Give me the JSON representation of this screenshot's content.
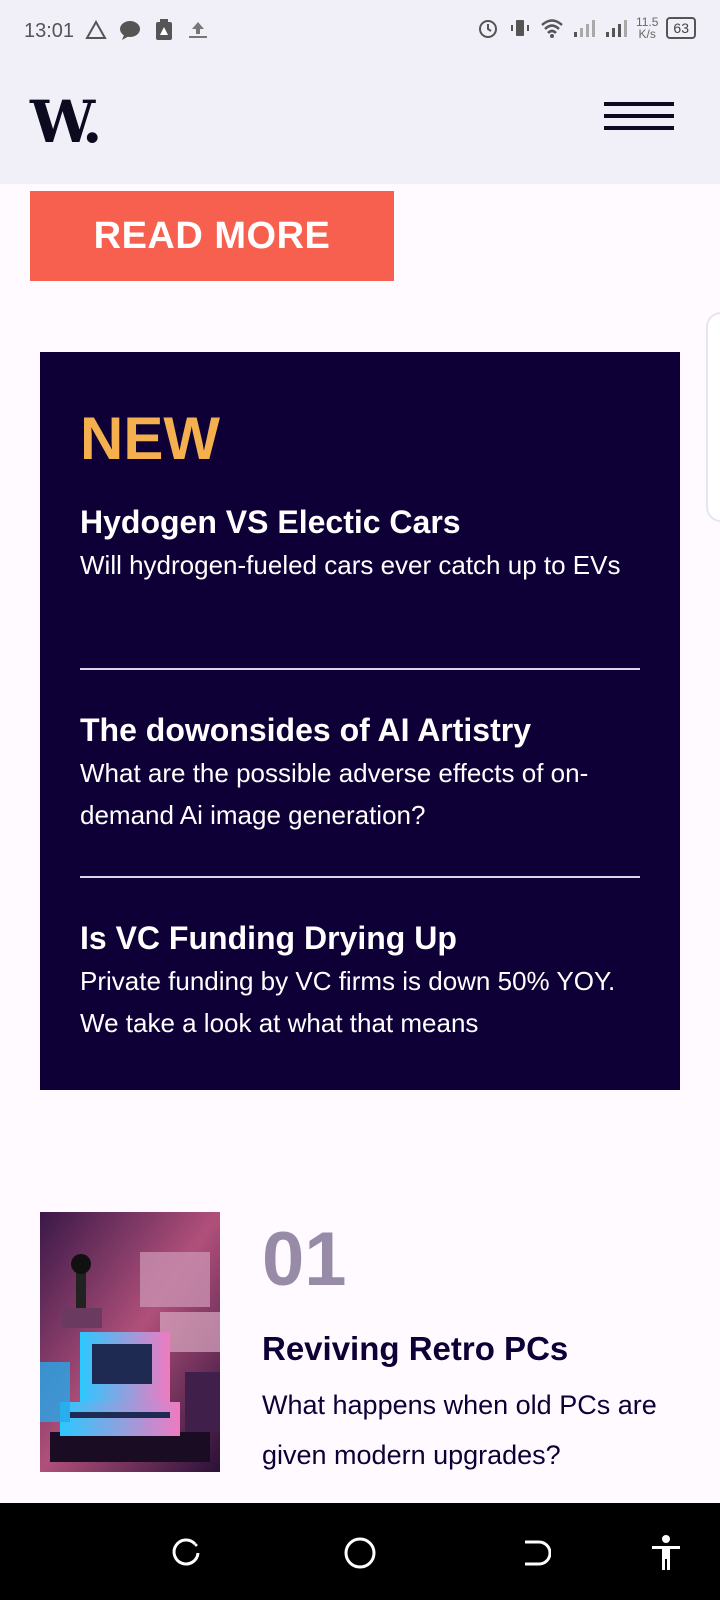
{
  "status": {
    "time": "13:01",
    "speed_value": "11.5",
    "speed_unit": "K/s",
    "battery": "63"
  },
  "header": {
    "logo": "W.",
    "menu_icon": "hamburger-icon"
  },
  "read_more": {
    "label": "READ MORE"
  },
  "new_section": {
    "title": "NEW",
    "items": [
      {
        "title": "Hydogen VS Electic Cars",
        "desc": "Will hydrogen-fueled cars ever catch up to EVs"
      },
      {
        "title": "The dowonsides of AI Artistry",
        "desc": "What are the possible adverse effects of on-demand Ai image generation?"
      },
      {
        "title": "Is VC Funding Drying Up",
        "desc": "Private funding by VC firms is down 50% YOY. We take a look at what that means"
      }
    ]
  },
  "article": {
    "number": "01",
    "title": "Reviving Retro PCs",
    "desc": "What happens when old PCs are given modern upgrades?"
  },
  "colors": {
    "accent": "#f7604f",
    "panel": "#0e0036",
    "new_title": "#f4b04f",
    "number": "#978ba8"
  }
}
